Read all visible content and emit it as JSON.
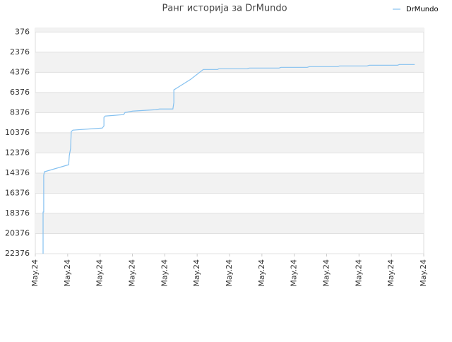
{
  "chart_data": {
    "type": "line",
    "title": "Ранг историја за DrMundo",
    "x": [
      0.24,
      0.24,
      0.26,
      0.26,
      0.28,
      1.03,
      1.05,
      1.09,
      1.11,
      1.16,
      2.07,
      2.12,
      2.12,
      2.16,
      2.73,
      2.77,
      3.01,
      3.71,
      3.84,
      4.25,
      4.28,
      4.28,
      4.8,
      5.19,
      5.63,
      5.67,
      6.55,
      6.61,
      7.53,
      7.59,
      8.4,
      8.47,
      9.34,
      9.4,
      10.25,
      10.32,
      11.19,
      11.25,
      11.72
    ],
    "series": [
      {
        "name": "DrMundo",
        "color": "#85c1f0",
        "values": [
          22376,
          18241,
          18241,
          14598,
          14248,
          13547,
          12636,
          11936,
          10254,
          10114,
          9904,
          9694,
          8853,
          8713,
          8573,
          8363,
          8223,
          8083,
          8013,
          8013,
          7382,
          6121,
          5070,
          4089,
          4089,
          4019,
          4019,
          3949,
          3949,
          3879,
          3879,
          3809,
          3809,
          3739,
          3739,
          3669,
          3669,
          3599,
          3599
        ]
      }
    ],
    "ylim": [
      22376,
      0
    ],
    "yticks": [
      376,
      2376,
      4376,
      6376,
      8376,
      10376,
      12376,
      14376,
      16376,
      18376,
      20376,
      22376
    ],
    "xlim": [
      0,
      12
    ],
    "xticks": [
      {
        "value": 0,
        "label": "May.24"
      },
      {
        "value": 1,
        "label": "May.24"
      },
      {
        "value": 2,
        "label": "May.24"
      },
      {
        "value": 3,
        "label": "May.24"
      },
      {
        "value": 4,
        "label": "May.24"
      },
      {
        "value": 5,
        "label": "May.24"
      },
      {
        "value": 6,
        "label": "May.24"
      },
      {
        "value": 7,
        "label": "May.24"
      },
      {
        "value": 8,
        "label": "May.24"
      },
      {
        "value": 9,
        "label": "May.24"
      },
      {
        "value": 10,
        "label": "May.24"
      },
      {
        "value": 11,
        "label": "May.24"
      },
      {
        "value": 12,
        "label": "May.24"
      }
    ],
    "grid": true,
    "legend": "top-right"
  }
}
